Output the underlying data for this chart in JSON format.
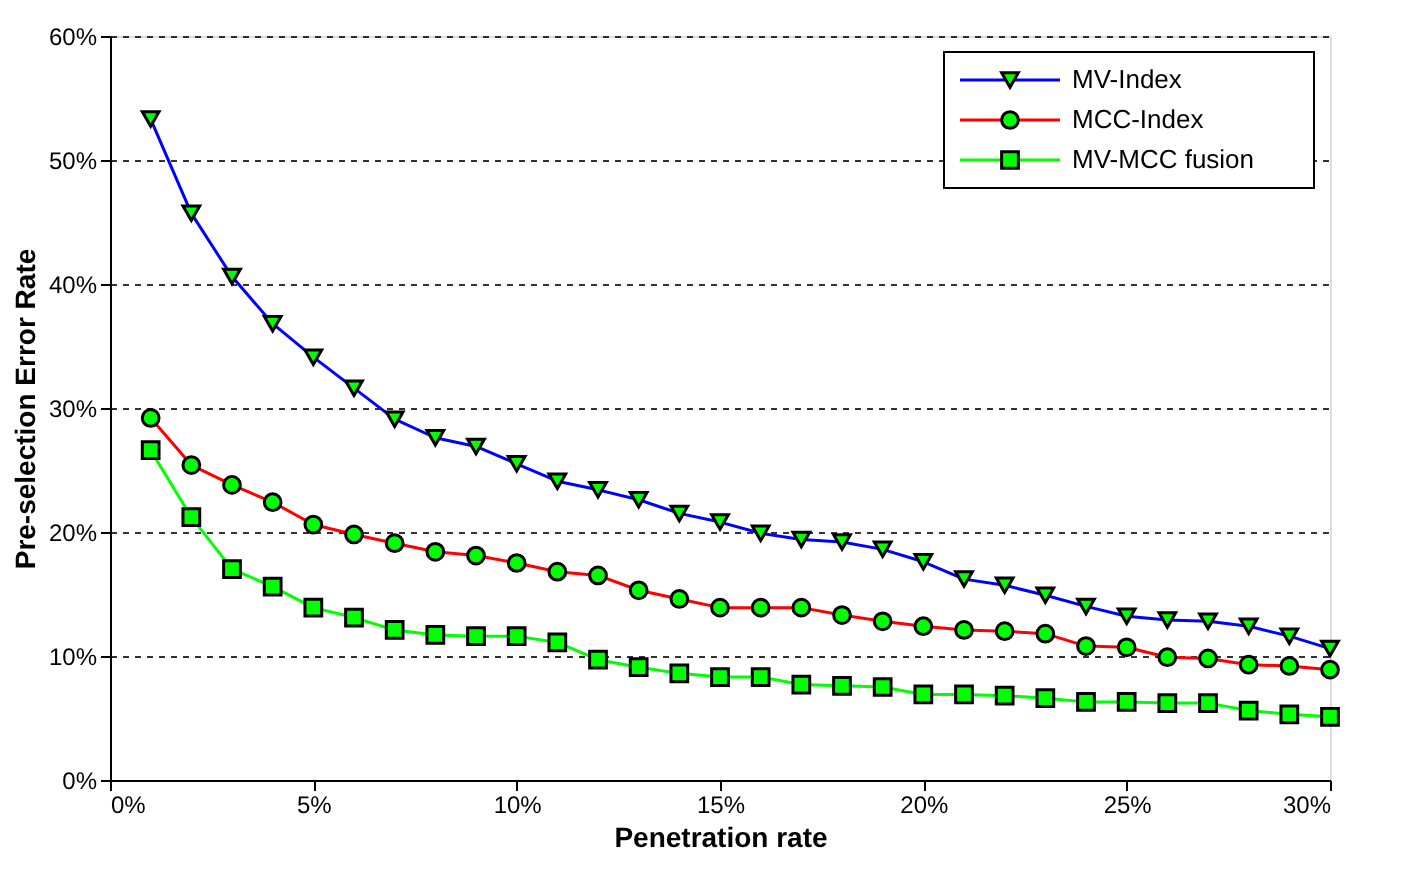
{
  "chart_data": {
    "type": "line",
    "xlabel": "Penetration rate",
    "ylabel": "Pre-selection Error Rate",
    "x": [
      1,
      2,
      3,
      4,
      5,
      6,
      7,
      8,
      9,
      10,
      11,
      12,
      13,
      14,
      15,
      16,
      17,
      18,
      19,
      20,
      21,
      22,
      23,
      24,
      25,
      26,
      27,
      28,
      29,
      30
    ],
    "series": [
      {
        "name": "MV-Index",
        "color": "#0000ff",
        "marker": "triangle",
        "values": [
          53.3,
          45.7,
          40.6,
          36.8,
          34.1,
          31.6,
          29.1,
          27.6,
          26.9,
          25.5,
          24.1,
          23.4,
          22.6,
          21.5,
          20.8,
          19.9,
          19.4,
          19.2,
          18.6,
          17.6,
          16.2,
          15.7,
          14.9,
          14.0,
          13.2,
          12.9,
          12.8,
          12.4,
          11.6,
          10.6
        ]
      },
      {
        "name": "MCC-Index",
        "color": "#ff0000",
        "marker": "circle",
        "values": [
          29.2,
          25.4,
          23.8,
          22.4,
          20.6,
          19.8,
          19.1,
          18.4,
          18.1,
          17.5,
          16.8,
          16.5,
          15.3,
          14.6,
          13.9,
          13.9,
          13.9,
          13.3,
          12.8,
          12.4,
          12.1,
          12.0,
          11.8,
          10.8,
          10.7,
          9.9,
          9.8,
          9.3,
          9.2,
          8.9
        ]
      },
      {
        "name": "MV-MCC fusion",
        "color": "#00ff00",
        "marker": "square",
        "values": [
          26.6,
          21.2,
          17.0,
          15.6,
          13.9,
          13.1,
          12.1,
          11.7,
          11.6,
          11.6,
          11.1,
          9.7,
          9.1,
          8.6,
          8.3,
          8.3,
          7.7,
          7.6,
          7.5,
          6.9,
          6.9,
          6.8,
          6.6,
          6.3,
          6.3,
          6.2,
          6.2,
          5.6,
          5.3,
          5.1
        ]
      }
    ],
    "xlim": [
      0,
      30
    ],
    "xticks": [
      {
        "value": 0,
        "label": "0%"
      },
      {
        "value": 5,
        "label": "5%"
      },
      {
        "value": 10,
        "label": "10%"
      },
      {
        "value": 15,
        "label": "15%"
      },
      {
        "value": 20,
        "label": "20%"
      },
      {
        "value": 25,
        "label": "25%"
      },
      {
        "value": 30,
        "label": "30%"
      }
    ],
    "ylim": [
      0,
      60
    ],
    "yticks": [
      {
        "value": 0,
        "label": "0%"
      },
      {
        "value": 10,
        "label": "10%"
      },
      {
        "value": 20,
        "label": "20%"
      },
      {
        "value": 30,
        "label": "30%"
      },
      {
        "value": 40,
        "label": "40%"
      },
      {
        "value": 50,
        "label": "50%"
      },
      {
        "value": 60,
        "label": "60%"
      }
    ],
    "grid": "y",
    "legend": "top right",
    "line_style": "solid"
  }
}
